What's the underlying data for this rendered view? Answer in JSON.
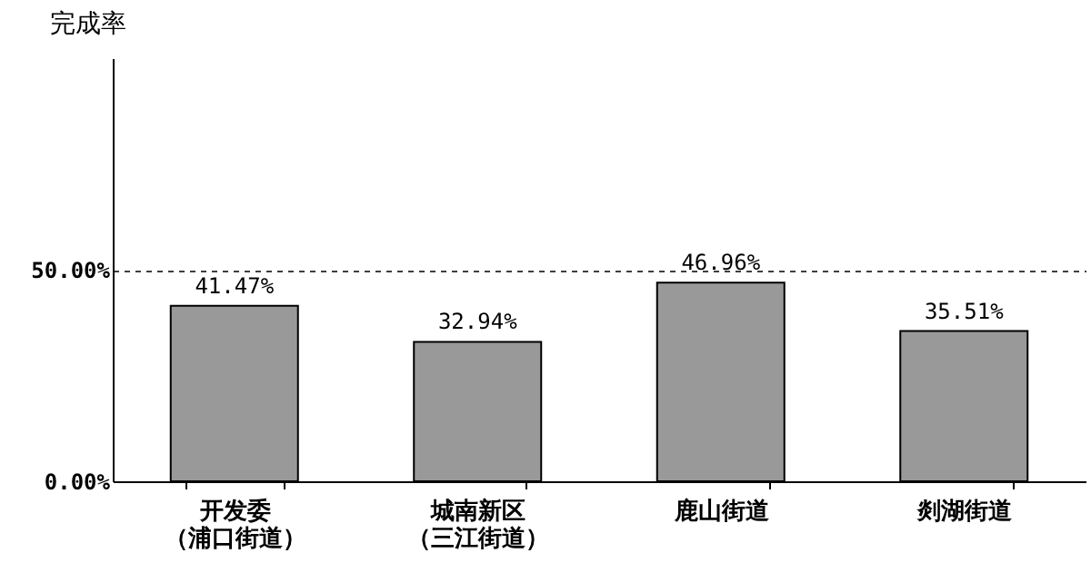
{
  "chart_data": {
    "type": "bar",
    "ylabel": "完成率",
    "categories": [
      "开发委（浦口街道）",
      "城南新区（三江街道）",
      "鹿山街道",
      "剡湖街道"
    ],
    "values": [
      41.47,
      32.94,
      46.96,
      35.51
    ],
    "color": "#999999",
    "value_labels": [
      "41.47%",
      "32.94%",
      "46.96%",
      "35.51%"
    ],
    "ylim": [
      0,
      100
    ],
    "yticks": [
      {
        "value": 0,
        "label": "0.00%"
      },
      {
        "value": 50,
        "label": "50.00%"
      }
    ],
    "grid": "y",
    "line_style": "dashed"
  }
}
